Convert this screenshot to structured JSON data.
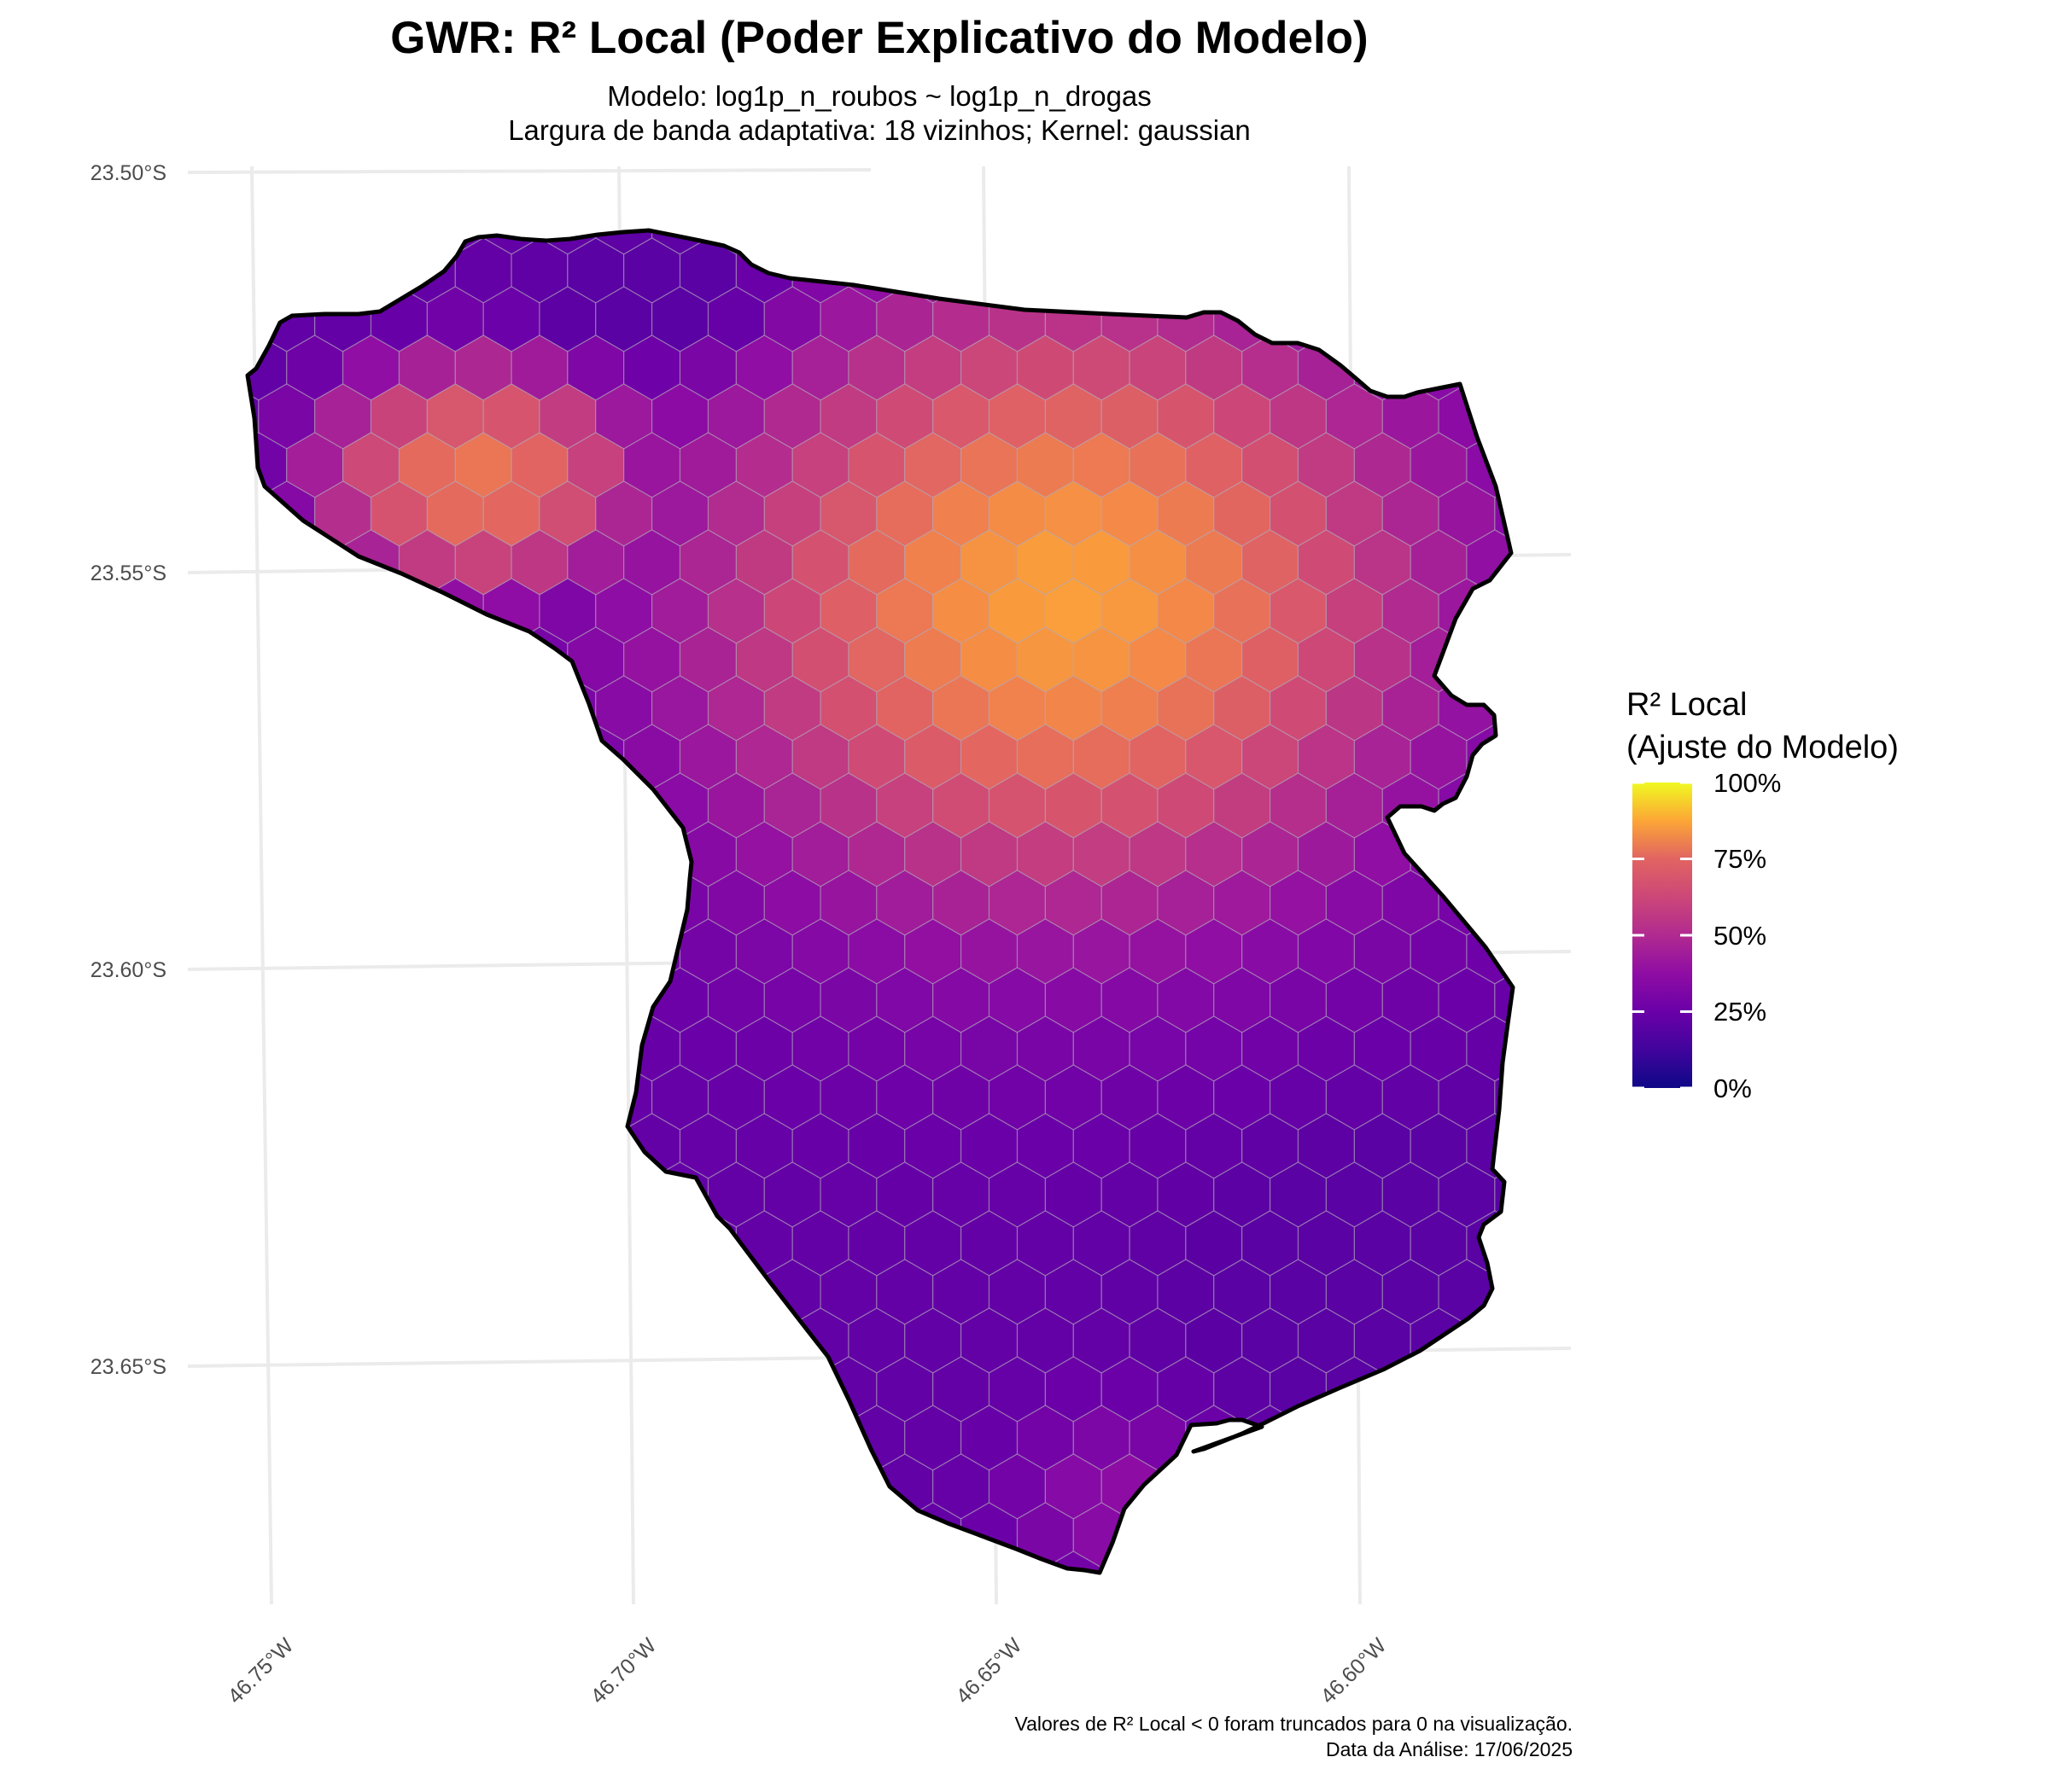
{
  "title": "GWR: R² Local (Poder Explicativo do Modelo)",
  "subtitle_line1": "Modelo: log1p_n_roubos ~ log1p_n_drogas",
  "subtitle_line2": "Largura de banda adaptativa: 18 vizinhos; Kernel: gaussian",
  "caption_line1": "Valores de R² Local < 0 foram truncados para 0 na visualização.",
  "caption_line2": "Data da Análise: 17/06/2025",
  "map": {
    "lat_ticks": [
      "23.50°S",
      "23.55°S",
      "23.60°S",
      "23.65°S"
    ],
    "lon_ticks": [
      "46.75°W",
      "46.70°W",
      "46.65°W",
      "46.60°W"
    ],
    "lat_tick_values": [
      -23.5,
      -23.55,
      -23.6,
      -23.65
    ],
    "lon_tick_values": [
      -46.75,
      -46.7,
      -46.65,
      -46.6
    ],
    "grid": true,
    "palette": "plasma",
    "peak_r2": 0.78,
    "peak_location": {
      "lon": -46.648,
      "lat": -23.553
    },
    "low_r2": 0.18,
    "low_location": {
      "lon": -46.62,
      "lat": -23.62
    }
  },
  "legend": {
    "title_line1": "R² Local",
    "title_line2": "(Ajuste do Modelo)",
    "labels": [
      "100%",
      "75%",
      "50%",
      "25%",
      "0%"
    ],
    "values": [
      1.0,
      0.75,
      0.5,
      0.25,
      0.0
    ],
    "placement": "right"
  }
}
